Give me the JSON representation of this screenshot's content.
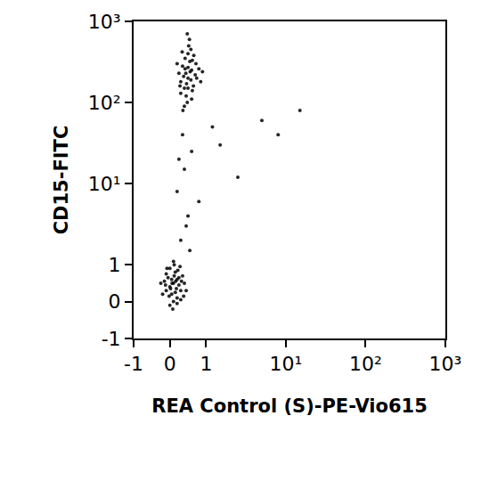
{
  "chart_data": {
    "type": "scatter",
    "x_label": "REA Control (S)-PE-Vio615",
    "y_label": "CD15-FITC",
    "color": "#000000",
    "log": true,
    "grid": false,
    "xlim": [
      -1,
      1000
    ],
    "ylim": [
      -1,
      1000
    ],
    "xticks": [
      -1,
      0,
      1,
      {
        "value": 10,
        "label": "10¹"
      },
      {
        "value": 100,
        "label": "10²"
      },
      {
        "value": 1000,
        "label": "10³"
      }
    ],
    "yticks": [
      -1,
      0,
      1,
      {
        "value": 10,
        "label": "10¹"
      },
      {
        "value": 100,
        "label": "10²"
      },
      {
        "value": 1000,
        "label": "10³"
      }
    ],
    "x": [
      0.1,
      0.0,
      0.2,
      -0.1,
      0.15,
      0.05,
      0.25,
      -0.05,
      0.3,
      0.1,
      0.0,
      0.2,
      -0.15,
      0.35,
      0.12,
      -0.2,
      0.4,
      0.08,
      0.22,
      -0.1,
      0.3,
      0.05,
      0.18,
      -0.02,
      0.28,
      0.12,
      -0.12,
      0.45,
      0.0,
      0.15,
      0.25,
      -0.25,
      0.1,
      0.32,
      0.02,
      0.2,
      -0.08,
      0.38,
      0.06,
      0.16,
      0.5,
      0.4,
      0.6,
      0.3,
      0.55,
      0.45,
      0.7,
      0.35,
      0.5,
      0.65,
      0.25,
      0.58,
      0.42,
      0.8,
      0.48,
      0.38,
      0.62,
      0.52,
      0.3,
      0.72,
      0.46,
      0.56,
      0.2,
      0.66,
      0.4,
      0.54,
      0.85,
      0.34,
      0.6,
      0.5,
      0.44,
      0.74,
      0.28,
      0.58,
      0.36,
      0.9,
      0.5,
      0.62,
      0.48,
      0.42,
      0.3,
      0.5,
      0.2,
      0.4,
      0.6,
      0.35,
      1.5,
      2.5,
      0.8,
      0.45,
      5,
      0.25,
      1.2,
      0.55,
      15,
      8
    ],
    "values": [
      0.5,
      0.4,
      0.6,
      0.3,
      0.8,
      0.2,
      0.45,
      0.65,
      0.3,
      0.0,
      0.9,
      0.1,
      0.55,
      0.7,
      1.0,
      0.2,
      0.5,
      -0.2,
      0.85,
      0.75,
      0.05,
      0.6,
      0.35,
      0.15,
      0.95,
      0.7,
      0.45,
      0.3,
      -0.1,
      0.25,
      0.65,
      0.5,
      1.1,
      0.55,
      0.35,
      -0.05,
      0.9,
      0.15,
      0.5,
      0.55,
      200,
      150,
      250,
      180,
      320,
      120,
      220,
      280,
      400,
      160,
      230,
      190,
      350,
      260,
      100,
      210,
      140,
      500,
      130,
      300,
      170,
      240,
      300,
      380,
      90,
      600,
      180,
      420,
      110,
      270,
      230,
      200,
      160,
      450,
      80,
      240,
      150,
      330,
      700,
      260,
      2,
      4,
      8,
      15,
      25,
      40,
      30,
      12,
      6,
      3,
      60,
      20,
      50,
      1.5,
      80,
      40
    ]
  }
}
